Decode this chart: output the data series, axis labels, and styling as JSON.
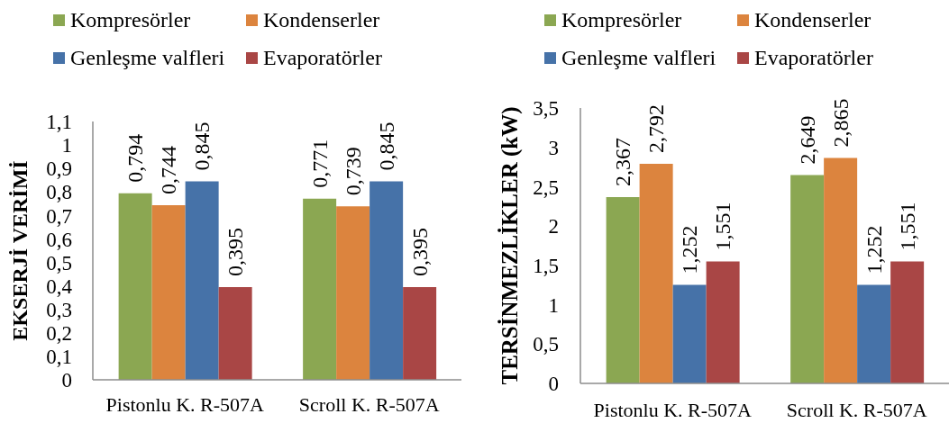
{
  "chart_data": [
    {
      "type": "bar",
      "ylabel": "EKSERJİ VERİMİ",
      "categories": [
        "Pistonlu K. R-507A",
        "Scroll K. R-507A"
      ],
      "series": [
        {
          "name": "Kompresörler",
          "color": "#8ba752",
          "values": [
            0.794,
            0.771
          ],
          "value_labels": [
            "0,794",
            "0,771"
          ]
        },
        {
          "name": "Kondenserler",
          "color": "#dc843e",
          "values": [
            0.744,
            0.739
          ],
          "value_labels": [
            "0,744",
            "0,739"
          ]
        },
        {
          "name": "Genleşme valfleri",
          "color": "#4672a8",
          "values": [
            0.845,
            0.845
          ],
          "value_labels": [
            "0,845",
            "0,845"
          ]
        },
        {
          "name": "Evaporatörler",
          "color": "#a94645",
          "values": [
            0.395,
            0.395
          ],
          "value_labels": [
            "0,395",
            "0,395"
          ]
        }
      ],
      "ylim": [
        0,
        1.1
      ],
      "yticks": [
        0,
        {
          "value": 0.1,
          "label": "0,1"
        },
        {
          "value": 0.2,
          "label": "0,2"
        },
        {
          "value": 0.3,
          "label": "0,3"
        },
        {
          "value": 0.4,
          "label": "0,4"
        },
        {
          "value": 0.5,
          "label": "0,5"
        },
        {
          "value": 0.6,
          "label": "0,6"
        },
        {
          "value": 0.7,
          "label": "0,7"
        },
        {
          "value": 0.8,
          "label": "0,8"
        },
        {
          "value": 0.9,
          "label": "0,9"
        },
        1,
        {
          "value": 1.1,
          "label": "1,1"
        }
      ],
      "legend": "top"
    },
    {
      "type": "bar",
      "ylabel": "TERSİNMEZLİKLER (kW)",
      "categories": [
        "Pistonlu K. R-507A",
        "Scroll K. R-507A"
      ],
      "series": [
        {
          "name": "Kompresörler",
          "color": "#8ba752",
          "values": [
            2.367,
            2.649
          ],
          "value_labels": [
            "2,367",
            "2,649"
          ]
        },
        {
          "name": "Kondenserler",
          "color": "#dc843e",
          "values": [
            2.792,
            2.865
          ],
          "value_labels": [
            "2,792",
            "2,865"
          ]
        },
        {
          "name": "Genleşme valfleri",
          "color": "#4672a8",
          "values": [
            1.252,
            1.252
          ],
          "value_labels": [
            "1,252",
            "1,252"
          ]
        },
        {
          "name": "Evaporatörler",
          "color": "#a94645",
          "values": [
            1.551,
            1.551
          ],
          "value_labels": [
            "1,551",
            "1,551"
          ]
        }
      ],
      "ylim": [
        0,
        3.5
      ],
      "yticks": [
        0,
        {
          "value": 0.5,
          "label": "0,5"
        },
        1,
        {
          "value": 1.5,
          "label": "1,5"
        },
        2,
        {
          "value": 2.5,
          "label": "2,5"
        },
        3,
        {
          "value": 3.5,
          "label": "3,5"
        }
      ],
      "legend": "top"
    }
  ]
}
